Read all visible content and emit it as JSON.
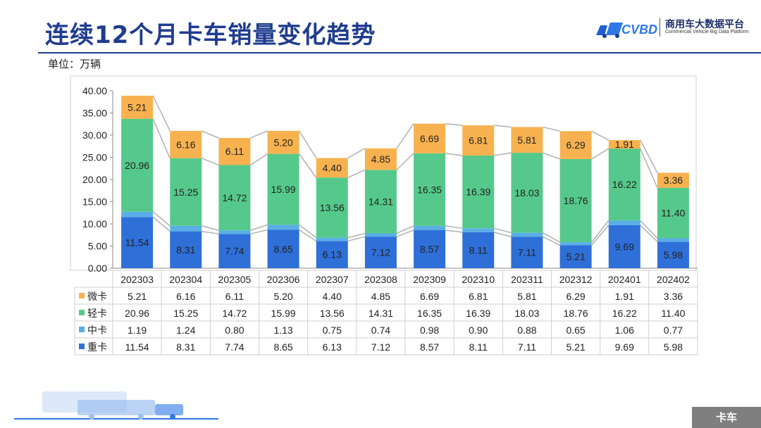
{
  "page": {
    "title": "连续12个月卡车销量变化趋势",
    "unit_label": "单位：万辆",
    "section_tag": "卡车"
  },
  "logo": {
    "mark": "CVBD",
    "name": "商用车大数据平台",
    "subtitle": "Commercial Vehicle Big Data Platform"
  },
  "colors": {
    "heavy": "#2e6fd8",
    "medium": "#5aaee6",
    "light": "#55c98b",
    "mini": "#f7b24f",
    "title": "#1f3c8f"
  },
  "chart_data": {
    "type": "bar",
    "stacked": true,
    "categories": [
      "202303",
      "202304",
      "202305",
      "202306",
      "202307",
      "202308",
      "202309",
      "202310",
      "202311",
      "202312",
      "202401",
      "202402"
    ],
    "series": [
      {
        "key": "heavy",
        "name": "重卡",
        "values": [
          11.54,
          8.31,
          7.74,
          8.65,
          6.13,
          7.12,
          8.57,
          8.11,
          7.11,
          5.21,
          9.69,
          5.98
        ]
      },
      {
        "key": "medium",
        "name": "中卡",
        "values": [
          1.19,
          1.24,
          0.8,
          1.13,
          0.75,
          0.74,
          0.98,
          0.9,
          0.88,
          0.65,
          1.06,
          0.77
        ]
      },
      {
        "key": "light",
        "name": "轻卡",
        "values": [
          20.96,
          15.25,
          14.72,
          15.99,
          13.56,
          14.31,
          16.35,
          16.39,
          18.03,
          18.76,
          16.22,
          11.4
        ]
      },
      {
        "key": "mini",
        "name": "微卡",
        "values": [
          5.21,
          6.16,
          6.11,
          5.2,
          4.4,
          4.85,
          6.69,
          6.81,
          5.81,
          6.29,
          1.91,
          3.36
        ]
      }
    ],
    "table_row_order": [
      "mini",
      "light",
      "medium",
      "heavy"
    ],
    "yticks": [
      "0.00",
      "5.00",
      "10.00",
      "15.00",
      "20.00",
      "25.00",
      "30.00",
      "35.00",
      "40.00"
    ],
    "ylim": [
      0,
      40
    ],
    "ytick_step": 5,
    "grid": false,
    "data_table": true
  }
}
